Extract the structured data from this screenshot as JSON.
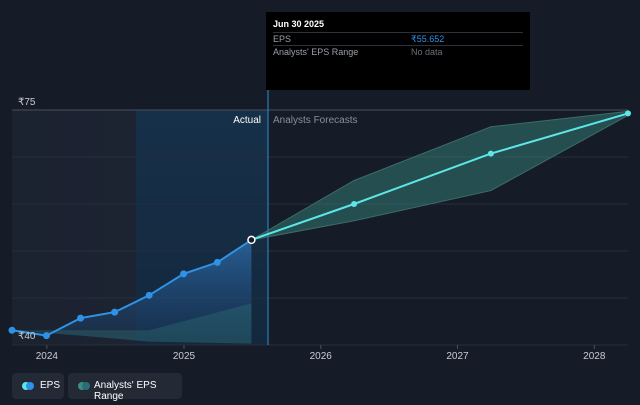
{
  "tooltip": {
    "date": "Jun 30 2025",
    "rows": [
      {
        "label": "EPS",
        "value": "₹55.652"
      },
      {
        "label": "Analysts' EPS Range",
        "value": "No data"
      }
    ]
  },
  "segments": {
    "actual": "Actual",
    "forecast": "Analysts Forecasts"
  },
  "legend": {
    "eps": "EPS",
    "range": "Analysts' EPS Range"
  },
  "colors": {
    "eps_line": "#2e93e6",
    "forecast_line": "#5ce6e6",
    "range_fill": "#3a8f82",
    "background": "#151b27"
  },
  "chart_data": {
    "type": "line",
    "y_tick_labels": [
      "₹75",
      "₹40"
    ],
    "ylim": [
      40,
      75
    ],
    "x_tick_labels": [
      "2024",
      "2025",
      "2026",
      "2027",
      "2028"
    ],
    "xlim": [
      "2023-09-30",
      "2028-03-31"
    ],
    "series": [
      {
        "name": "EPS",
        "segment": "actual",
        "points": [
          {
            "x": "2023-09-30",
            "y": 42.2
          },
          {
            "x": "2023-12-31",
            "y": 41.4
          },
          {
            "x": "2024-03-31",
            "y": 44.0
          },
          {
            "x": "2024-06-30",
            "y": 44.9
          },
          {
            "x": "2024-09-30",
            "y": 47.4
          },
          {
            "x": "2024-12-31",
            "y": 50.6
          },
          {
            "x": "2025-03-31",
            "y": 52.3
          },
          {
            "x": "2025-06-30",
            "y": 55.652
          }
        ]
      },
      {
        "name": "EPS",
        "segment": "forecast",
        "points": [
          {
            "x": "2025-06-30",
            "y": 55.652
          },
          {
            "x": "2026-03-31",
            "y": 61.0
          },
          {
            "x": "2027-03-31",
            "y": 68.5
          },
          {
            "x": "2028-03-31",
            "y": 74.5
          }
        ]
      },
      {
        "name": "Analysts' EPS Range",
        "segment": "forecast",
        "upper": [
          {
            "x": "2025-06-30",
            "y": 55.652
          },
          {
            "x": "2026-03-31",
            "y": 64.5
          },
          {
            "x": "2027-03-31",
            "y": 72.5
          },
          {
            "x": "2028-03-31",
            "y": 74.8
          }
        ],
        "lower": [
          {
            "x": "2025-06-30",
            "y": 55.652
          },
          {
            "x": "2026-03-31",
            "y": 58.5
          },
          {
            "x": "2027-03-31",
            "y": 63.0
          },
          {
            "x": "2028-03-31",
            "y": 74.2
          }
        ]
      },
      {
        "name": "Analysts' EPS Range",
        "segment": "actual",
        "upper": [
          {
            "x": "2023-09-30",
            "y": 42.2
          },
          {
            "x": "2024-09-30",
            "y": 42.2
          },
          {
            "x": "2025-06-30",
            "y": 46.2
          }
        ],
        "lower": [
          {
            "x": "2023-09-30",
            "y": 42.2
          },
          {
            "x": "2024-03-31",
            "y": 41.4
          },
          {
            "x": "2024-09-30",
            "y": 40.5
          },
          {
            "x": "2025-06-30",
            "y": 40.2
          }
        ]
      }
    ],
    "grid": true,
    "legend_position": "bottom-left"
  }
}
